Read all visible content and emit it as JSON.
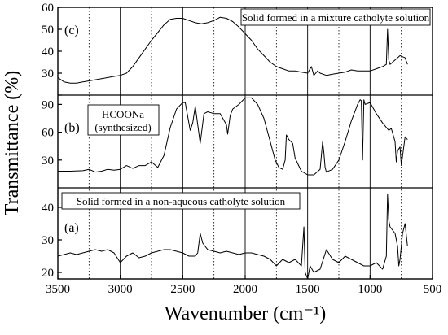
{
  "chart_data": {
    "type": "line",
    "xlabel": "Wavenumber (cm⁻¹)",
    "ylabel": "Transmittance (%)",
    "xlim": [
      3500,
      500
    ],
    "x_ticks": [
      3500,
      3000,
      2500,
      2000,
      1500,
      1000,
      500
    ],
    "x_tick_labels": [
      "3500",
      "3000",
      "2500",
      "2000",
      "1500",
      "1000",
      "500"
    ],
    "solid_vlines": [
      3000,
      2500,
      2000,
      1500,
      1000
    ],
    "dotted_vlines": [
      3250,
      2750,
      2250,
      1750,
      1250,
      750
    ],
    "panels": [
      {
        "id": "c",
        "label": "(c)",
        "annotation": "Solid formed in a mixture catholyte solution",
        "ylim": [
          20,
          60
        ],
        "y_ticks": [
          20,
          30,
          40,
          50,
          60
        ],
        "y_tick_labels": [
          "",
          "30",
          "40",
          "50",
          "60"
        ],
        "series": {
          "x": [
            3500,
            3450,
            3400,
            3350,
            3300,
            3250,
            3200,
            3150,
            3100,
            3050,
            3000,
            2950,
            2900,
            2850,
            2800,
            2750,
            2700,
            2650,
            2600,
            2550,
            2500,
            2450,
            2400,
            2350,
            2300,
            2250,
            2200,
            2150,
            2100,
            2050,
            2000,
            1950,
            1900,
            1850,
            1800,
            1750,
            1700,
            1650,
            1600,
            1550,
            1500,
            1470,
            1450,
            1420,
            1400,
            1350,
            1300,
            1250,
            1200,
            1150,
            1100,
            1050,
            1000,
            950,
            900,
            870,
            860,
            850,
            840,
            800,
            780,
            760,
            720,
            700
          ],
          "y": [
            28,
            26,
            25.5,
            25.5,
            26,
            26.5,
            27,
            27.5,
            28,
            28.5,
            29,
            30,
            33,
            37,
            41,
            45,
            48.5,
            52,
            54.5,
            55,
            55,
            54,
            53,
            52.5,
            53,
            54,
            55.5,
            55,
            53.5,
            51,
            48,
            45,
            41,
            38,
            35,
            33,
            32,
            31,
            31,
            30.5,
            30,
            33,
            29,
            31,
            30,
            29,
            29.5,
            30,
            30.5,
            31.5,
            31,
            31,
            31,
            32,
            33,
            34,
            50,
            36,
            34,
            36,
            37,
            38,
            37,
            34
          ]
        }
      },
      {
        "id": "b",
        "label": "(b)",
        "annotation": "HCOONa (synthesized)",
        "annotation_lines": [
          "HCOONa",
          "(synthesized)"
        ],
        "ylim": [
          0,
          100
        ],
        "y_ticks": [
          30,
          60,
          90
        ],
        "y_tick_labels": [
          "30",
          "60",
          "90"
        ],
        "series": {
          "x": [
            3500,
            3400,
            3300,
            3250,
            3200,
            3150,
            3100,
            3050,
            3000,
            2950,
            2900,
            2850,
            2800,
            2750,
            2700,
            2650,
            2600,
            2550,
            2500,
            2480,
            2440,
            2420,
            2400,
            2360,
            2330,
            2300,
            2250,
            2200,
            2150,
            2140,
            2120,
            2100,
            2050,
            2000,
            1950,
            1900,
            1850,
            1800,
            1760,
            1730,
            1700,
            1680,
            1670,
            1650,
            1620,
            1600,
            1550,
            1500,
            1450,
            1400,
            1380,
            1370,
            1360,
            1350,
            1300,
            1250,
            1200,
            1150,
            1100,
            1080,
            1070,
            1060,
            1050,
            1040,
            1000,
            950,
            900,
            850,
            830,
            800,
            790,
            780,
            760,
            750,
            720,
            700
          ],
          "y": [
            18,
            18,
            18.5,
            20,
            17,
            18,
            20,
            19,
            20,
            24,
            21,
            24,
            24,
            28,
            22,
            35,
            65,
            85,
            92,
            92,
            62,
            70,
            88,
            48,
            80,
            82,
            80,
            80,
            68,
            58,
            78,
            85,
            90,
            97,
            97,
            90,
            75,
            50,
            30,
            22,
            20,
            30,
            57,
            52,
            48,
            32,
            18,
            14,
            14,
            20,
            50,
            38,
            22,
            17,
            20,
            30,
            50,
            72,
            90,
            95,
            94,
            30,
            95,
            90,
            92,
            80,
            70,
            62,
            64,
            50,
            28,
            40,
            44,
            24,
            55,
            52
          ]
        }
      },
      {
        "id": "a",
        "label": "(a)",
        "annotation": "Solid formed in a non-aqueous catholyte solution",
        "ylim": [
          18,
          46
        ],
        "y_ticks": [
          20,
          30,
          40
        ],
        "y_tick_labels": [
          "20",
          "30",
          "40"
        ],
        "series": {
          "x": [
            3500,
            3450,
            3400,
            3350,
            3300,
            3250,
            3200,
            3150,
            3100,
            3050,
            3000,
            2950,
            2900,
            2850,
            2800,
            2750,
            2700,
            2650,
            2600,
            2550,
            2500,
            2450,
            2400,
            2380,
            2360,
            2340,
            2320,
            2300,
            2250,
            2200,
            2150,
            2100,
            2050,
            2000,
            1950,
            1900,
            1850,
            1800,
            1750,
            1700,
            1650,
            1600,
            1550,
            1530,
            1520,
            1500,
            1480,
            1450,
            1400,
            1350,
            1300,
            1250,
            1200,
            1150,
            1100,
            1050,
            1000,
            950,
            900,
            870,
            860,
            850,
            840,
            800,
            780,
            770,
            760,
            740,
            720,
            700
          ],
          "y": [
            25,
            25.5,
            26,
            25.5,
            26,
            26.5,
            27,
            26.5,
            27,
            26,
            23,
            25,
            26,
            24.5,
            25,
            26,
            26.5,
            27,
            27,
            26.5,
            26,
            25,
            25,
            26,
            32,
            29,
            28,
            27,
            26.5,
            26,
            26.5,
            26,
            25.5,
            26,
            26,
            25.5,
            25,
            24,
            22,
            24,
            23,
            24,
            22,
            34,
            20,
            18,
            22,
            20,
            21,
            27,
            24,
            23,
            25,
            24,
            23,
            22,
            22,
            23,
            21,
            25,
            44,
            36,
            34,
            32,
            28,
            22,
            24,
            32,
            35,
            28
          ]
        }
      }
    ]
  }
}
